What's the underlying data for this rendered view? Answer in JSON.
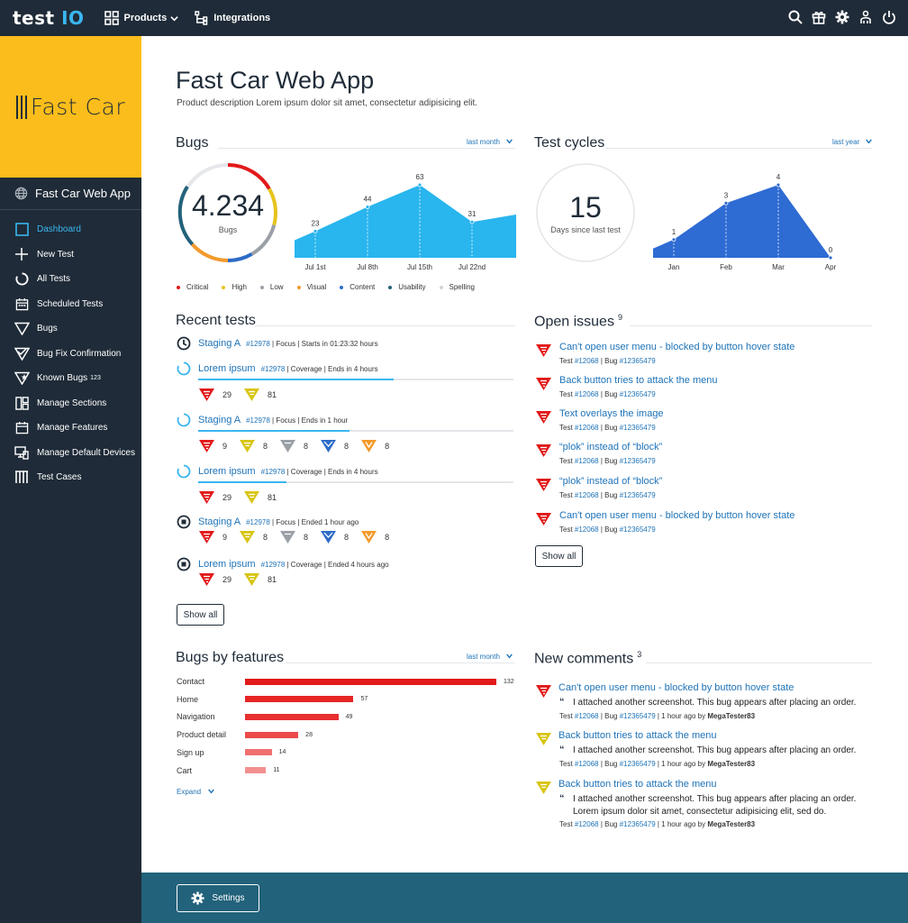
{
  "topbar": {
    "logo_main": "test ",
    "logo_accent": "IO",
    "nav": {
      "products": "Products",
      "integrations": "Integrations"
    }
  },
  "sidebar": {
    "brand": "Fast Car",
    "project": "Fast Car Web App",
    "items": [
      {
        "label": "Dashboard",
        "icon": "dashboard-icon"
      },
      {
        "label": "New Test",
        "icon": "plus-icon"
      },
      {
        "label": "All Tests",
        "icon": "circle-icon"
      },
      {
        "label": "Scheduled Tests",
        "icon": "calendar-icon"
      },
      {
        "label": "Bugs",
        "icon": "bug-icon"
      },
      {
        "label": "Bug Fix Confirmation",
        "icon": "bug-check-icon"
      },
      {
        "label": "Known Bugs",
        "icon": "bug-star-icon",
        "badge": "123"
      },
      {
        "label": "Manage Sections",
        "icon": "sections-icon"
      },
      {
        "label": "Manage Features",
        "icon": "features-icon"
      },
      {
        "label": "Manage Default Devices",
        "icon": "devices-icon"
      },
      {
        "label": "Test Cases",
        "icon": "testcases-icon"
      }
    ]
  },
  "page": {
    "title": "Fast Car Web App",
    "description": "Product description Lorem ipsum dolor sit amet, consectetur adipisicing elit."
  },
  "bugs": {
    "title": "Bugs",
    "period": "last month",
    "total": "4.234",
    "total_label": "Bugs",
    "legend": [
      {
        "label": "Critical",
        "color": "#e21a1a"
      },
      {
        "label": "High",
        "color": "#e6c41d"
      },
      {
        "label": "Low",
        "color": "#9aa0a6"
      },
      {
        "label": "Visual",
        "color": "#f39a2b"
      },
      {
        "label": "Content",
        "color": "#2d6cc7"
      },
      {
        "label": "Usability",
        "color": "#22627a"
      },
      {
        "label": "Spelling",
        "color": "#d0d4d8"
      }
    ]
  },
  "test_cycles": {
    "title": "Test cycles",
    "period": "last year",
    "value": "15",
    "label": "Days since last test"
  },
  "chart_data": [
    {
      "type": "area",
      "categories": [
        "Jul 1st",
        "Jul 8th",
        "Jul 15th",
        "Jul 22nd"
      ],
      "values": [
        23,
        44,
        63,
        31
      ],
      "color": "#29b5ee"
    },
    {
      "type": "area",
      "categories": [
        "Jan",
        "Feb",
        "Mar",
        "Apr"
      ],
      "values": [
        1,
        3,
        4,
        0
      ],
      "color": "#2e6bd3"
    }
  ],
  "recent_tests": {
    "title": "Recent tests",
    "show_all": "Show all",
    "items": [
      {
        "name": "Staging A",
        "id": "#12978",
        "meta": " | Focus | Starts in 01:23:32 hours",
        "status": "scheduled",
        "progress": null,
        "bugs": []
      },
      {
        "name": "Lorem ipsum",
        "id": "#12978",
        "meta": " | Coverage | Ends in 4 hours",
        "status": "running",
        "progress": 0.62,
        "bugs": [
          {
            "type": "critical",
            "count": "29"
          },
          {
            "type": "high",
            "count": "81"
          }
        ]
      },
      {
        "name": "Staging A",
        "id": "#12978",
        "meta": " | Focus | Ends in 1 hour",
        "status": "running",
        "progress": 0.48,
        "bugs": [
          {
            "type": "critical",
            "count": "9"
          },
          {
            "type": "high",
            "count": "8"
          },
          {
            "type": "low",
            "count": "8"
          },
          {
            "type": "content",
            "count": "8"
          },
          {
            "type": "visual",
            "count": "8"
          }
        ]
      },
      {
        "name": "Lorem ipsum",
        "id": "#12978",
        "meta": " | Coverage | Ends in 4 hours",
        "status": "running",
        "progress": 0.28,
        "bugs": [
          {
            "type": "critical",
            "count": "29"
          },
          {
            "type": "high",
            "count": "81"
          }
        ]
      },
      {
        "name": "Staging A",
        "id": "#12978",
        "meta": " | Focus | Ended 1 hour ago",
        "status": "ended",
        "progress": null,
        "bugs": [
          {
            "type": "critical",
            "count": "9"
          },
          {
            "type": "high",
            "count": "8"
          },
          {
            "type": "low",
            "count": "8"
          },
          {
            "type": "content",
            "count": "8"
          },
          {
            "type": "visual",
            "count": "8"
          }
        ]
      },
      {
        "name": "Lorem ipsum",
        "id": "#12978",
        "meta": " | Coverage | Ended 4 hours ago",
        "status": "ended",
        "progress": null,
        "bugs": [
          {
            "type": "critical",
            "count": "29"
          },
          {
            "type": "high",
            "count": "81"
          }
        ]
      }
    ]
  },
  "open_issues": {
    "title": "Open issues",
    "count": "9",
    "show_all": "Show all",
    "items": [
      {
        "title": "Can't open user menu - blocked by button hover state",
        "test": "#12068",
        "bug": "#12365479"
      },
      {
        "title": "Back button tries to attack the menu",
        "test": "#12068",
        "bug": "#12365479"
      },
      {
        "title": "Text overlays the image",
        "test": "#12068",
        "bug": "#12365479"
      },
      {
        "title": "“plok” instead of “block”",
        "test": "#12068",
        "bug": "#12365479"
      },
      {
        "title": "“plok” instead of “block”",
        "test": "#12068",
        "bug": "#12365479"
      },
      {
        "title": "Can't open user menu - blocked by button hover state",
        "test": "#12068",
        "bug": "#12365479"
      }
    ]
  },
  "bugs_by_features": {
    "title": "Bugs by features",
    "period": "last month",
    "expand": "Expand",
    "items": [
      {
        "label": "Contact",
        "value": 132
      },
      {
        "label": "Home",
        "value": 57
      },
      {
        "label": "Navigation",
        "value": 49
      },
      {
        "label": "Product detail",
        "value": 28
      },
      {
        "label": "Sign up",
        "value": 14
      },
      {
        "label": "Cart",
        "value": 11
      }
    ]
  },
  "new_comments": {
    "title": "New comments",
    "count": "3",
    "items": [
      {
        "title": "Can't open user menu - blocked by button hover state",
        "body": "I attached another screenshot. This bug appears after placing an order.",
        "test": "#12068",
        "bug": "#12365479",
        "time": " | 1 hour ago by ",
        "author": "MegaTester83",
        "severity": "critical"
      },
      {
        "title": "Back button tries to attack the menu",
        "body": "I attached another screenshot. This bug appears after placing an order.",
        "test": "#12068",
        "bug": "#12365479",
        "time": " | 1 hour ago by ",
        "author": "MegaTester83",
        "severity": "high"
      },
      {
        "title": "Back button tries to attack the menu",
        "body": "I attached another screenshot. This bug appears after placing an order. Lorem ipsum dolor sit amet, consectetur adipisicing elit, sed do.",
        "test": "#12068",
        "bug": "#12365479",
        "time": " | 1 hour ago by ",
        "author": "MegaTester83",
        "severity": "high"
      }
    ]
  },
  "footer": {
    "settings": "Settings"
  },
  "labels": {
    "test": "Test ",
    "bug": " | Bug "
  },
  "colors": {
    "critical": "#e21a1a",
    "high": "#d8c514",
    "low": "#9aa0a6",
    "content": "#2d6cc7",
    "visual": "#f39a2b",
    "accent": "#3ab6ef",
    "link": "#1e73b8"
  }
}
